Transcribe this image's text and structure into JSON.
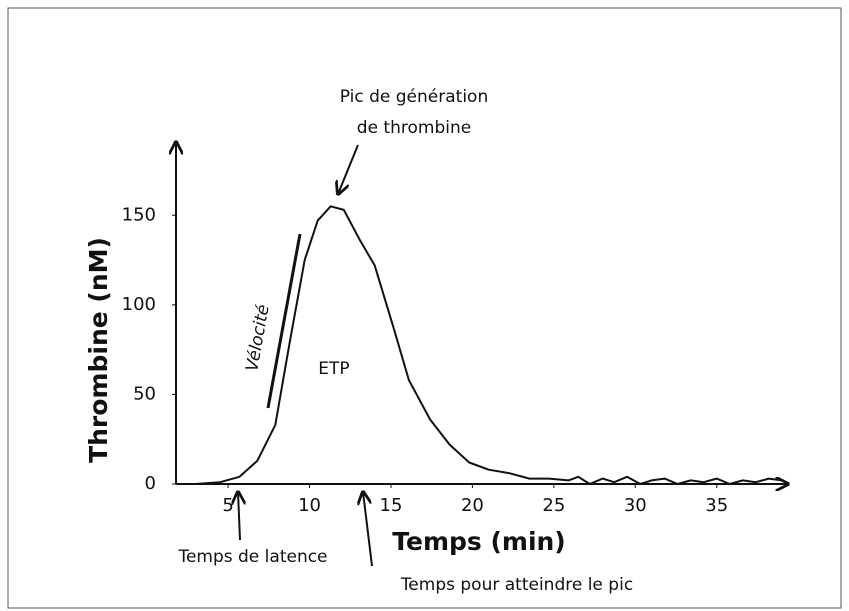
{
  "chart_data": {
    "type": "line",
    "ylabel": "Thrombine (nM)",
    "xlabel": "Temps (min)",
    "x": [
      1.8,
      3,
      4.5,
      5.7,
      6.8,
      7.9,
      8.8,
      9.7,
      10.5,
      11.3,
      12.1,
      13.1,
      14,
      15.2,
      16.1,
      17.4,
      18.6,
      19.8,
      21,
      22.3,
      23.5,
      24.7,
      25.9,
      26.5,
      27.2,
      28,
      28.7,
      29.5,
      30.3,
      31,
      31.8,
      32.6,
      33.4,
      34.2,
      35,
      35.8,
      36.6,
      37.4,
      38.2,
      39
    ],
    "series": [
      {
        "name": "Thrombine",
        "color": "#111111",
        "values": [
          0,
          0,
          1,
          4,
          13,
          33,
          80,
          125,
          147,
          155,
          153,
          136,
          122,
          86,
          58,
          36,
          22,
          12,
          8,
          6,
          3,
          3,
          2,
          4,
          0,
          3,
          1,
          4,
          0,
          2,
          3,
          0,
          2,
          1,
          3,
          0,
          2,
          1,
          3,
          2
        ]
      }
    ],
    "xlim": [
      1.8,
      39.5
    ],
    "ylim": [
      0,
      192
    ],
    "xticks": [
      5,
      10,
      15,
      20,
      25,
      30,
      35
    ],
    "yticks": [
      0,
      50,
      100,
      150
    ],
    "annotations": {
      "peak": [
        "Pic de génération",
        "de thrombine"
      ],
      "velocity": "Vélocité",
      "etp": "ETP",
      "lag": "Temps de latence",
      "ttp": "Temps pour atteindre le pic"
    }
  }
}
